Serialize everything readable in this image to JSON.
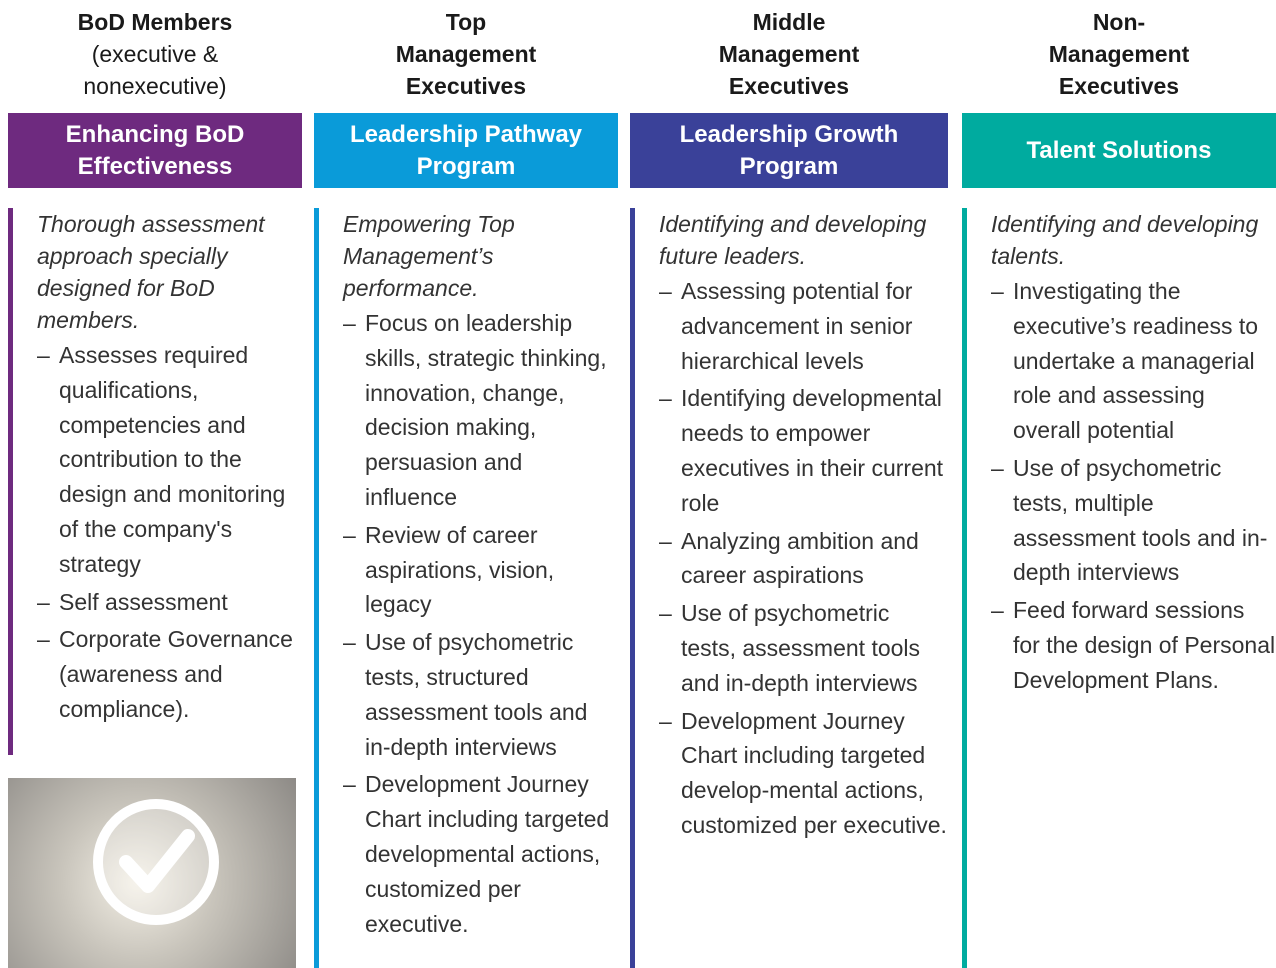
{
  "columns": [
    {
      "audience": {
        "title": "BoD Members",
        "subtitle": "(executive & nonexecutive)"
      },
      "program": "Enhancing BoD Effectiveness",
      "color": "#6e2a7f",
      "description": "Thorough assessment approach specially designed for BoD members.",
      "bullets": [
        "Assesses required qualifications, competencies and contribution to the design and monitoring of the company's strategy",
        "Self assessment",
        "Corporate Governance (awareness and compliance)."
      ]
    },
    {
      "audience": {
        "title": "Top Management Executives"
      },
      "program": "Leadership Pathway Program",
      "color": "#0a9bd9",
      "description": "Empowering Top Management’s performance.",
      "bullets": [
        "Focus on leadership skills, strategic thinking, innovation, change, decision making, persuasion and influence",
        "Review of career aspirations, vision, legacy",
        "Use of psychometric tests, structured assessment tools and in-depth interviews",
        "Development Journey Chart including targeted developmental actions, customized per executive."
      ]
    },
    {
      "audience": {
        "title": "Middle Management Executives"
      },
      "program": "Leadership Growth Program",
      "color": "#3a4199",
      "description": "Identifying and developing future leaders.",
      "bullets": [
        "Assessing potential for advancement in senior hierarchical levels",
        "Identifying developmental needs to empower executives in their current role",
        "Analyzing ambition and career aspirations",
        "Use of psychometric tests, assessment tools and in-depth interviews",
        "Development Journey Chart including targeted develop-mental actions, customized per executive."
      ]
    },
    {
      "audience": {
        "title": "Non-Management Executives"
      },
      "program": "Talent Solutions",
      "color": "#00ab9f",
      "description": "Identifying and developing talents.",
      "bullets": [
        "Investigating the executive’s readiness to undertake a managerial role and assessing overall potential",
        "Use of psychometric tests, multiple assessment tools and in-depth interviews",
        "Feed forward sessions for the design of Personal Development Plans."
      ]
    }
  ]
}
